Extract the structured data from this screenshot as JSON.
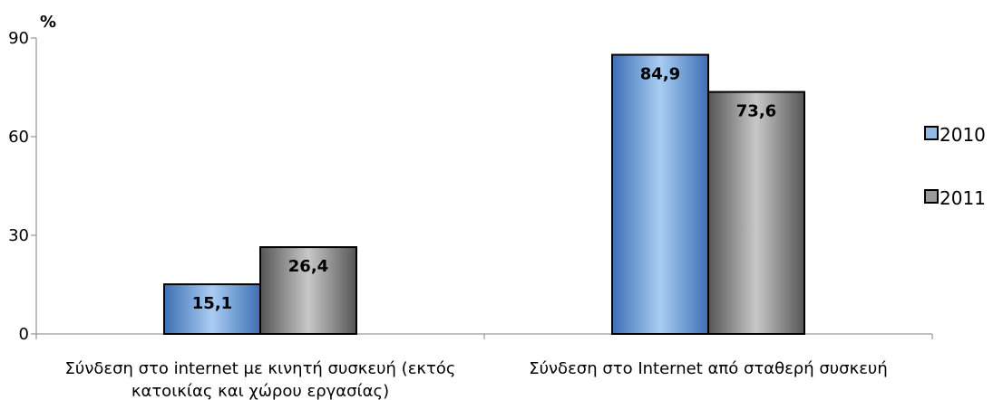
{
  "chart_data": {
    "type": "bar",
    "unit_label": "%",
    "ylim": [
      0,
      90
    ],
    "yticks": [
      "0",
      "30",
      "60",
      "90"
    ],
    "yticks_values": [
      0,
      30,
      60,
      90
    ],
    "categories": [
      [
        "Σύνδεση στο internet με κινητή συσκευή (εκτός",
        "κατοικίας και χώρου εργασίας)"
      ],
      [
        "Σύνδεση στο Internet από σταθερή συσκευή"
      ]
    ],
    "series": [
      {
        "name": "2010",
        "values": [
          15.1,
          84.9
        ],
        "labels": [
          "15,1",
          "84,9"
        ],
        "color": "#6fa8dc"
      },
      {
        "name": "2011",
        "values": [
          26.4,
          73.6
        ],
        "labels": [
          "26,4",
          "73,6"
        ],
        "color": "#8c8c8c"
      }
    ],
    "grid": false,
    "legend_position": "right"
  }
}
